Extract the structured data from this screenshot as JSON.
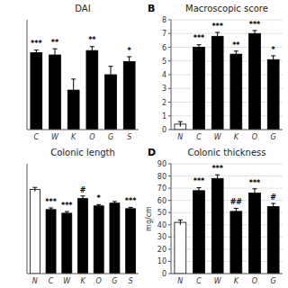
{
  "chart_data": [
    {
      "type": "bar",
      "title": "DAI",
      "categories": [
        "C",
        "W",
        "K",
        "O",
        "G",
        "S"
      ],
      "values": [
        3.5,
        3.4,
        1.8,
        3.6,
        2.5,
        3.1
      ],
      "errors": [
        0.12,
        0.28,
        0.5,
        0.18,
        0.38,
        0.22
      ],
      "colors": [
        "black",
        "black",
        "black",
        "black",
        "black",
        "black"
      ],
      "annotations": [
        "***",
        "**",
        null,
        "**",
        null,
        "*"
      ],
      "ylim": [
        0,
        5.0
      ],
      "tick_labels": "x"
    },
    {
      "type": "bar",
      "title": "Macroscopic score",
      "panel_label": "B",
      "categories": [
        "N",
        "C",
        "W",
        "K",
        "O",
        "G"
      ],
      "values": [
        0.4,
        6.0,
        6.8,
        5.5,
        7.0,
        5.1
      ],
      "errors": [
        0.18,
        0.18,
        0.28,
        0.22,
        0.22,
        0.28
      ],
      "colors": [
        "white",
        "black",
        "black",
        "black",
        "black",
        "black"
      ],
      "annotations": [
        null,
        "***",
        "***",
        "**",
        "***",
        "*"
      ],
      "ylim": [
        0,
        8
      ],
      "yticks": [
        0,
        1,
        2,
        3,
        4,
        5,
        6,
        7,
        8
      ]
    },
    {
      "type": "bar",
      "title": "Colonic length",
      "categories": [
        "N",
        "C",
        "W",
        "K",
        "O",
        "G",
        "S"
      ],
      "values": [
        9.2,
        7.0,
        6.6,
        8.2,
        7.4,
        7.7,
        7.1
      ],
      "errors": [
        0.22,
        0.18,
        0.18,
        0.28,
        0.14,
        0.18,
        0.14
      ],
      "colors": [
        "white",
        "black",
        "black",
        "black",
        "black",
        "black",
        "black"
      ],
      "annotations": [
        null,
        "***",
        "***",
        "#",
        "*",
        null,
        "***"
      ],
      "ylim": [
        0,
        12
      ],
      "tick_labels": "x"
    },
    {
      "type": "bar",
      "title": "Colonic thickness",
      "panel_label": "D",
      "categories": [
        "N",
        "C",
        "W",
        "K",
        "O",
        "G"
      ],
      "values": [
        42,
        68,
        78,
        51,
        66,
        55
      ],
      "errors": [
        2.0,
        2.5,
        3.0,
        2.5,
        3.5,
        2.5
      ],
      "colors": [
        "white",
        "black",
        "black",
        "black",
        "black",
        "black"
      ],
      "annotations": [
        null,
        "***",
        "***",
        "##",
        "***",
        "#"
      ],
      "ylim": [
        0,
        90
      ],
      "yticks": [
        0,
        10,
        20,
        30,
        40,
        50,
        60,
        70,
        80,
        90
      ],
      "ylabel": "mg/cm"
    }
  ]
}
